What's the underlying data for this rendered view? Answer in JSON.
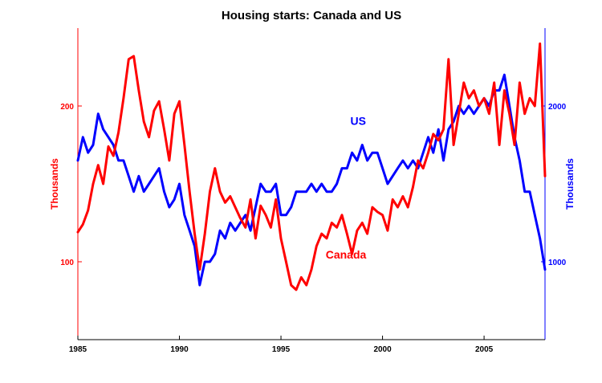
{
  "chart_data": {
    "type": "line",
    "title": "Housing starts: Canada and US",
    "xlim": [
      1985,
      2008
    ],
    "x_ticks": [
      "1985",
      "1990",
      "1995",
      "2000",
      "2005"
    ],
    "left_axis": {
      "label": "Thousands",
      "color": "#ff0000",
      "ylim": [
        50,
        250
      ],
      "ticks": [
        {
          "value": 100,
          "label": "100"
        },
        {
          "value": 200,
          "label": "200"
        }
      ]
    },
    "right_axis": {
      "label": "Thousands",
      "color": "#0000ff",
      "ylim": [
        500,
        2500
      ],
      "ticks": [
        {
          "value": 1000,
          "label": "1000"
        },
        {
          "value": 2000,
          "label": "2000"
        }
      ]
    },
    "series": [
      {
        "name": "Canada",
        "axis": "left",
        "color": "#ff0000",
        "x": [
          1985.0,
          1985.25,
          1985.5,
          1985.75,
          1986.0,
          1986.25,
          1986.5,
          1986.75,
          1987.0,
          1987.25,
          1987.5,
          1987.75,
          1988.0,
          1988.25,
          1988.5,
          1988.75,
          1989.0,
          1989.25,
          1989.5,
          1989.75,
          1990.0,
          1990.25,
          1990.5,
          1990.75,
          1991.0,
          1991.25,
          1991.5,
          1991.75,
          1992.0,
          1992.25,
          1992.5,
          1992.75,
          1993.0,
          1993.25,
          1993.5,
          1993.75,
          1994.0,
          1994.25,
          1994.5,
          1994.75,
          1995.0,
          1995.25,
          1995.5,
          1995.75,
          1996.0,
          1996.25,
          1996.5,
          1996.75,
          1997.0,
          1997.25,
          1997.5,
          1997.75,
          1998.0,
          1998.25,
          1998.5,
          1998.75,
          1999.0,
          1999.25,
          1999.5,
          1999.75,
          2000.0,
          2000.25,
          2000.5,
          2000.75,
          2001.0,
          2001.25,
          2001.5,
          2001.75,
          2002.0,
          2002.25,
          2002.5,
          2002.75,
          2003.0,
          2003.25,
          2003.5,
          2003.75,
          2004.0,
          2004.25,
          2004.5,
          2004.75,
          2005.0,
          2005.25,
          2005.5,
          2005.75,
          2006.0,
          2006.25,
          2006.5,
          2006.75,
          2007.0,
          2007.25,
          2007.5,
          2007.75,
          2008.0
        ],
        "values": [
          119,
          124,
          133,
          150,
          162,
          150,
          174,
          168,
          183,
          205,
          230,
          232,
          210,
          190,
          180,
          197,
          203,
          185,
          165,
          195,
          203,
          175,
          145,
          118,
          95,
          118,
          145,
          160,
          145,
          138,
          142,
          135,
          128,
          122,
          140,
          115,
          136,
          130,
          122,
          140,
          115,
          100,
          85,
          82,
          90,
          85,
          95,
          110,
          118,
          115,
          125,
          122,
          130,
          118,
          105,
          120,
          125,
          118,
          135,
          132,
          130,
          120,
          140,
          135,
          142,
          135,
          148,
          165,
          160,
          170,
          182,
          178,
          185,
          230,
          175,
          195,
          215,
          205,
          210,
          200,
          205,
          195,
          215,
          175,
          210,
          195,
          175,
          215,
          195,
          205,
          200,
          240,
          155
        ]
      },
      {
        "name": "US",
        "axis": "right",
        "color": "#0000ff",
        "x": [
          1985.0,
          1985.25,
          1985.5,
          1985.75,
          1986.0,
          1986.25,
          1986.5,
          1986.75,
          1987.0,
          1987.25,
          1987.5,
          1987.75,
          1988.0,
          1988.25,
          1988.5,
          1988.75,
          1989.0,
          1989.25,
          1989.5,
          1989.75,
          1990.0,
          1990.25,
          1990.5,
          1990.75,
          1991.0,
          1991.25,
          1991.5,
          1991.75,
          1992.0,
          1992.25,
          1992.5,
          1992.75,
          1993.0,
          1993.25,
          1993.5,
          1993.75,
          1994.0,
          1994.25,
          1994.5,
          1994.75,
          1995.0,
          1995.25,
          1995.5,
          1995.75,
          1996.0,
          1996.25,
          1996.5,
          1996.75,
          1997.0,
          1997.25,
          1997.5,
          1997.75,
          1998.0,
          1998.25,
          1998.5,
          1998.75,
          1999.0,
          1999.25,
          1999.5,
          1999.75,
          2000.0,
          2000.25,
          2000.5,
          2000.75,
          2001.0,
          2001.25,
          2001.5,
          2001.75,
          2002.0,
          2002.25,
          2002.5,
          2002.75,
          2003.0,
          2003.25,
          2003.5,
          2003.75,
          2004.0,
          2004.25,
          2004.5,
          2004.75,
          2005.0,
          2005.25,
          2005.5,
          2005.75,
          2006.0,
          2006.25,
          2006.5,
          2006.75,
          2007.0,
          2007.25,
          2007.5,
          2007.75,
          2008.0
        ],
        "values": [
          1650,
          1800,
          1700,
          1750,
          1950,
          1850,
          1800,
          1750,
          1650,
          1650,
          1550,
          1450,
          1550,
          1450,
          1500,
          1550,
          1600,
          1450,
          1350,
          1400,
          1500,
          1300,
          1200,
          1100,
          850,
          1000,
          1000,
          1050,
          1200,
          1150,
          1250,
          1200,
          1250,
          1300,
          1200,
          1350,
          1500,
          1450,
          1450,
          1500,
          1300,
          1300,
          1350,
          1450,
          1450,
          1450,
          1500,
          1450,
          1500,
          1450,
          1450,
          1500,
          1600,
          1600,
          1700,
          1650,
          1750,
          1650,
          1700,
          1700,
          1600,
          1500,
          1550,
          1600,
          1650,
          1600,
          1650,
          1600,
          1700,
          1800,
          1700,
          1850,
          1650,
          1850,
          1900,
          2000,
          1950,
          2000,
          1950,
          2000,
          2050,
          2000,
          2100,
          2100,
          2200,
          2000,
          1800,
          1650,
          1450,
          1450,
          1300,
          1150,
          950
        ]
      }
    ],
    "annotations": [
      {
        "text": "US",
        "color": "#0000ff",
        "x": 1998.8,
        "y_left": 188
      },
      {
        "text": "Canada",
        "color": "#ff0000",
        "x": 1998.2,
        "y_left": 102
      }
    ]
  }
}
